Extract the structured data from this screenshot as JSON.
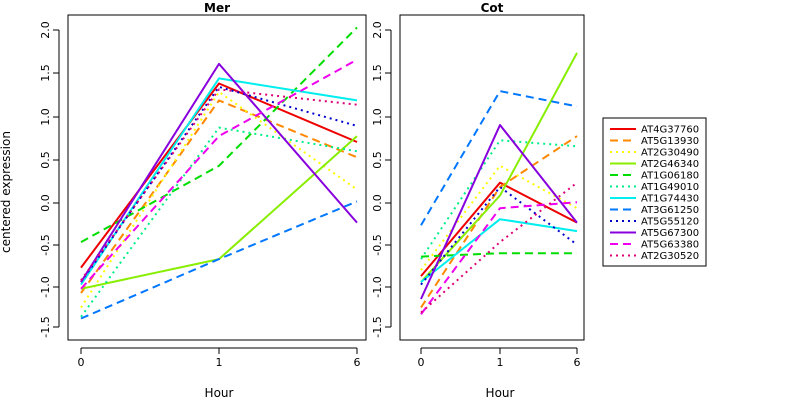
{
  "chart_data": {
    "type": "line",
    "ylabel": "centered expression",
    "xlabel": "Hour",
    "x": [
      "0",
      "1",
      "6"
    ],
    "ylim": [
      -1.5,
      2.1
    ],
    "yticks": [
      "-1.5",
      "-1.0",
      "-0.5",
      "0.0",
      "0.5",
      "1.0",
      "1.5",
      "2.0"
    ],
    "legend_position": "right",
    "series_styles": [
      {
        "name": "AT4G37760",
        "color": "#ee0000",
        "dash": "solid"
      },
      {
        "name": "AT5G13930",
        "color": "#ff8800",
        "dash": "dashed"
      },
      {
        "name": "AT2G30490",
        "color": "#ffff00",
        "dash": "dotted"
      },
      {
        "name": "AT2G46340",
        "color": "#88ee00",
        "dash": "solid"
      },
      {
        "name": "AT1G06180",
        "color": "#00dd00",
        "dash": "dashed"
      },
      {
        "name": "AT1G49010",
        "color": "#00ee88",
        "dash": "dotted"
      },
      {
        "name": "AT1G74430",
        "color": "#00eeee",
        "dash": "solid"
      },
      {
        "name": "AT3G61250",
        "color": "#0077ff",
        "dash": "dashed"
      },
      {
        "name": "AT5G55120",
        "color": "#0000cc",
        "dash": "dotted"
      },
      {
        "name": "AT5G67300",
        "color": "#8800dd",
        "dash": "solid"
      },
      {
        "name": "AT5G63380",
        "color": "#ee00ee",
        "dash": "dashed"
      },
      {
        "name": "AT2G30520",
        "color": "#dd0077",
        "dash": "dotted"
      }
    ],
    "panels": [
      {
        "title": "Mer",
        "series": [
          {
            "name": "AT4G37760",
            "values": [
              -0.8,
              1.37,
              0.68
            ]
          },
          {
            "name": "AT5G13930",
            "values": [
              -1.1,
              1.17,
              0.5
            ]
          },
          {
            "name": "AT2G30490",
            "values": [
              -1.27,
              1.27,
              0.12
            ]
          },
          {
            "name": "AT2G46340",
            "values": [
              -1.05,
              -0.7,
              0.75
            ]
          },
          {
            "name": "AT1G06180",
            "values": [
              -0.5,
              0.4,
              2.03
            ]
          },
          {
            "name": "AT1G49010",
            "values": [
              -1.38,
              0.85,
              0.57
            ]
          },
          {
            "name": "AT1G74430",
            "values": [
              -1.0,
              1.43,
              1.17
            ]
          },
          {
            "name": "AT3G61250",
            "values": [
              -1.4,
              -0.7,
              -0.02
            ]
          },
          {
            "name": "AT5G55120",
            "values": [
              -0.97,
              1.33,
              0.87
            ]
          },
          {
            "name": "AT5G67300",
            "values": [
              -0.97,
              1.6,
              -0.27
            ]
          },
          {
            "name": "AT5G63380",
            "values": [
              -1.05,
              0.75,
              1.65
            ]
          },
          {
            "name": "AT2G30520",
            "values": [
              -0.95,
              1.3,
              1.12
            ]
          }
        ]
      },
      {
        "title": "Cot",
        "series": [
          {
            "name": "AT4G37760",
            "values": [
              -0.9,
              0.2,
              -0.27
            ]
          },
          {
            "name": "AT5G13930",
            "values": [
              -1.27,
              0.15,
              0.75
            ]
          },
          {
            "name": "AT2G30490",
            "values": [
              -0.83,
              0.4,
              -0.1
            ]
          },
          {
            "name": "AT2G46340",
            "values": [
              -0.97,
              0.05,
              1.73
            ]
          },
          {
            "name": "AT1G06180",
            "values": [
              -0.67,
              -0.63,
              -0.63
            ]
          },
          {
            "name": "AT1G49010",
            "values": [
              -0.7,
              0.7,
              0.63
            ]
          },
          {
            "name": "AT1G74430",
            "values": [
              -0.97,
              -0.23,
              -0.37
            ]
          },
          {
            "name": "AT3G61250",
            "values": [
              -0.3,
              1.28,
              1.1
            ]
          },
          {
            "name": "AT5G55120",
            "values": [
              -1.0,
              0.15,
              -0.53
            ]
          },
          {
            "name": "AT5G67300",
            "values": [
              -1.17,
              0.88,
              -0.27
            ]
          },
          {
            "name": "AT5G63380",
            "values": [
              -1.35,
              -0.1,
              -0.03
            ]
          },
          {
            "name": "AT2G30520",
            "values": [
              -1.33,
              -0.5,
              0.2
            ]
          }
        ]
      }
    ]
  }
}
